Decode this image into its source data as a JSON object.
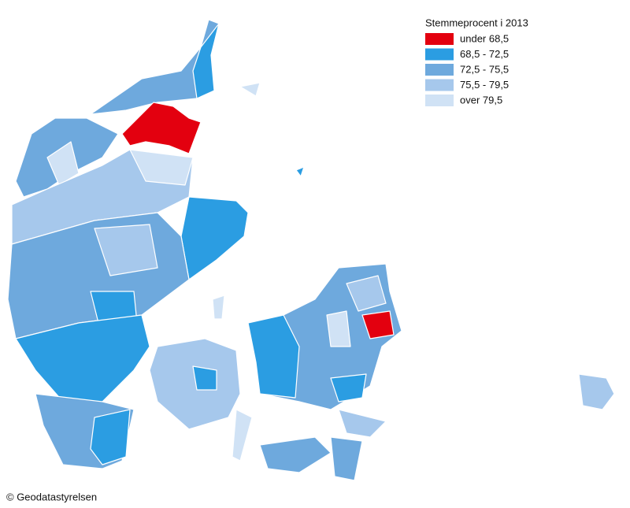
{
  "legend": {
    "title": "Stemmeprocent i 2013",
    "classes": [
      {
        "label": "under 68,5",
        "color": "#e3000f"
      },
      {
        "label": "68,5 - 72,5",
        "color": "#2b9de2"
      },
      {
        "label": "72,5 - 75,5",
        "color": "#6ea9dd"
      },
      {
        "label": "75,5 - 79,5",
        "color": "#a6c8ec"
      },
      {
        "label": "over 79,5",
        "color": "#d0e2f5"
      }
    ]
  },
  "footer": "© Geodatastyrelsen"
}
